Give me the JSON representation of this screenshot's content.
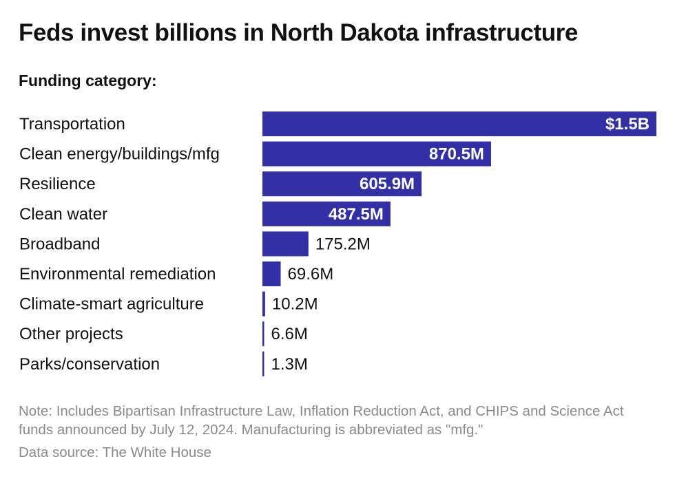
{
  "title": "Feds invest billions in North Dakota infrastructure",
  "subtitle": "Funding category:",
  "note": "Note: Includes Bipartisan Infrastructure Law, Inflation Reduction Act, and CHIPS and Science Act funds announced by July 12, 2024. Manufacturing is abbreviated as \"mfg.\"",
  "source": "Data source: The White House",
  "colors": {
    "bar": "#3330a6",
    "inside_label": "#ffffff",
    "outside_label": "#111111"
  },
  "chart_data": {
    "type": "bar",
    "orientation": "horizontal",
    "title": "Feds invest billions in North Dakota infrastructure",
    "ylabel": "Funding category:",
    "unit": "USD millions",
    "xlim": [
      0,
      1500
    ],
    "grid": false,
    "legend": "none",
    "categories": [
      "Transportation",
      "Clean energy/buildings/mfg",
      "Resilience",
      "Clean water",
      "Broadband",
      "Environmental remediation",
      "Climate-smart agriculture",
      "Other projects",
      "Parks/conservation"
    ],
    "values": [
      1500,
      870.5,
      605.9,
      487.5,
      175.2,
      69.6,
      10.2,
      6.6,
      1.3
    ],
    "labels": [
      "$1.5B",
      "870.5M",
      "605.9M",
      "487.5M",
      "175.2M",
      "69.6M",
      "10.2M",
      "6.6M",
      "1.3M"
    ]
  }
}
